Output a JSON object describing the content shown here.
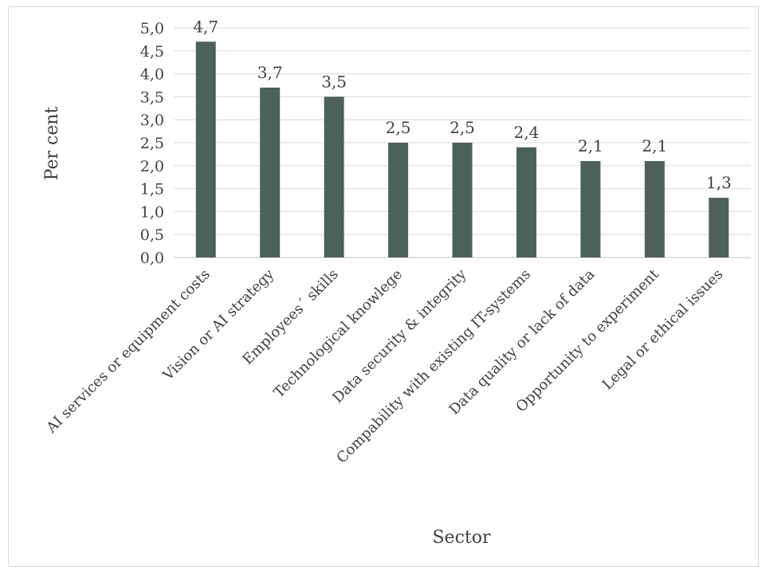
{
  "chart_data": {
    "type": "bar",
    "title": "",
    "xlabel": "Sector",
    "ylabel": "Per cent",
    "ylim": [
      0,
      5
    ],
    "ytick_step": 0.5,
    "ytick_labels": [
      "0,0",
      "0,5",
      "1,0",
      "1,5",
      "2,0",
      "2,5",
      "3,0",
      "3,5",
      "4,0",
      "4,5",
      "5,0"
    ],
    "grid": true,
    "legend": "none",
    "bar_color": "#4d6159",
    "categories": [
      "AI services or equipment costs",
      "Vision or AI strategy",
      "Employees´ skills",
      "Technological knowlege",
      "Data security & integrity",
      "Compability with existing IT-systems",
      "Data quality or lack of data",
      "Opportunity to experiment",
      "Legal or ethical issues"
    ],
    "values": [
      4.7,
      3.7,
      3.5,
      2.5,
      2.5,
      2.4,
      2.1,
      2.1,
      1.3
    ],
    "data_labels": [
      "4,7",
      "3,7",
      "3,5",
      "2,5",
      "2,5",
      "2,4",
      "2,1",
      "2,1",
      "1,3"
    ]
  }
}
